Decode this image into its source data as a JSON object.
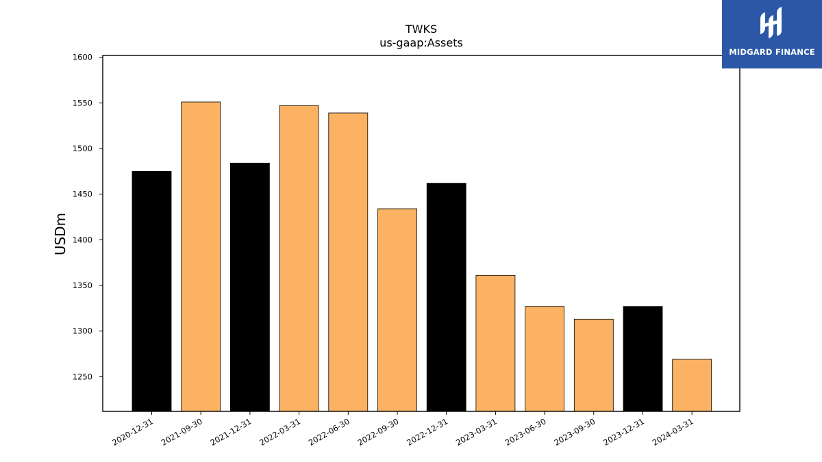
{
  "chart_data": {
    "type": "bar",
    "title": "TWKS",
    "subtitle": "us-gaap:Assets",
    "ylabel": "USDm",
    "xlabel": "",
    "ylim": [
      1212,
      1602
    ],
    "yticks": [
      1250,
      1300,
      1350,
      1400,
      1450,
      1500,
      1550,
      1600
    ],
    "categories": [
      "2020-12-31",
      "2021-09-30",
      "2021-12-31",
      "2022-03-31",
      "2022-06-30",
      "2022-09-30",
      "2022-12-31",
      "2023-03-31",
      "2023-06-30",
      "2023-09-30",
      "2023-12-31",
      "2024-03-31"
    ],
    "values": [
      1475,
      1551,
      1484,
      1547,
      1539,
      1434,
      1462,
      1361,
      1327,
      1313,
      1327,
      1269
    ],
    "bar_colors": [
      "#000000",
      "#fbb262",
      "#000000",
      "#fbb262",
      "#fbb262",
      "#fbb262",
      "#000000",
      "#fbb262",
      "#fbb262",
      "#fbb262",
      "#000000",
      "#fbb262"
    ],
    "grid": false,
    "legend": "none"
  },
  "logo": {
    "text": "MIDGARD FINANCE",
    "background": "#2b57a6"
  }
}
